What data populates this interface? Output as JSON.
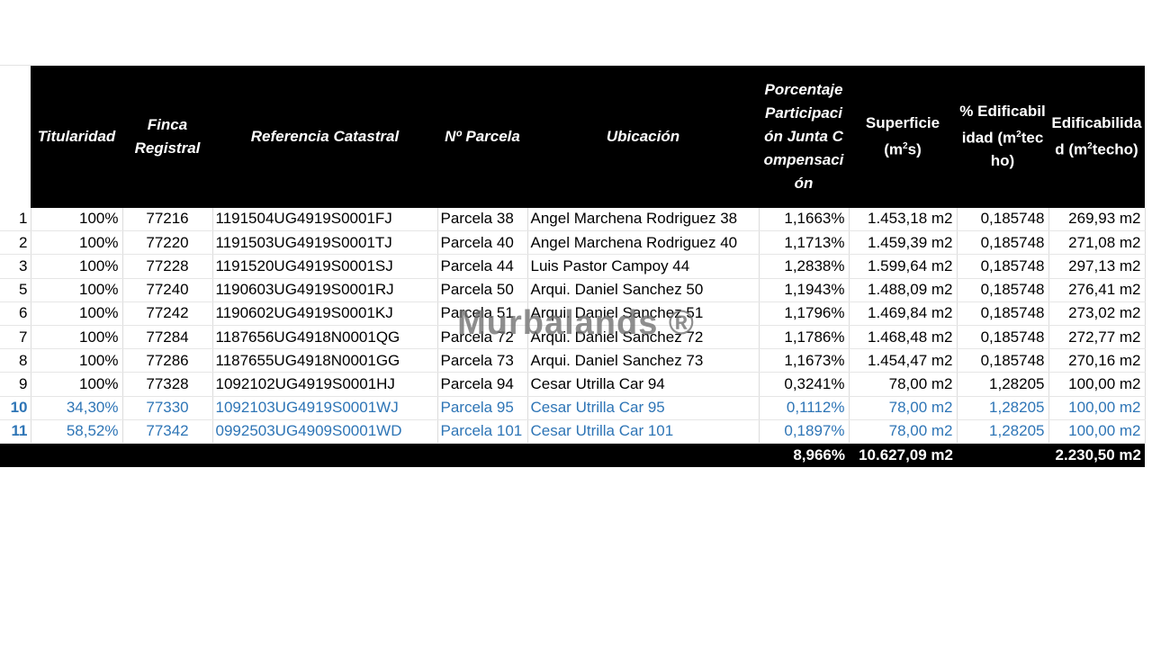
{
  "table": {
    "headers": {
      "titularidad": "Titularidad",
      "finca": "Finca Registral",
      "referencia": "Referencia Catastral",
      "parcela": "Nº Parcela",
      "ubicacion": "Ubicación",
      "porcentaje": "Porcentaje Participación Junta Compensación",
      "superficie_pre": "Superficie (m",
      "superficie_sup": "2",
      "superficie_post": "s)",
      "pct_edif_pre": "% Edificabilidad (m",
      "pct_edif_sup": "2",
      "pct_edif_post": "techo)",
      "edif_pre": "Edificabilidad (m",
      "edif_sup": "2",
      "edif_post": "techo)"
    },
    "rows": [
      {
        "n": "1",
        "titularidad": "100%",
        "finca": "77216",
        "referencia": "1191504UG4919S0001FJ",
        "parcela": "Parcela 38",
        "ubicacion": "Angel Marchena Rodriguez 38",
        "porcentaje": "1,1663%",
        "superficie": "1.453,18 m2",
        "pct_edif": "0,185748",
        "edif": "269,93 m2"
      },
      {
        "n": "2",
        "titularidad": "100%",
        "finca": "77220",
        "referencia": "1191503UG4919S0001TJ",
        "parcela": "Parcela 40",
        "ubicacion": "Angel Marchena Rodriguez 40",
        "porcentaje": "1,1713%",
        "superficie": "1.459,39 m2",
        "pct_edif": "0,185748",
        "edif": "271,08 m2"
      },
      {
        "n": "3",
        "titularidad": "100%",
        "finca": "77228",
        "referencia": "1191520UG4919S0001SJ",
        "parcela": "Parcela 44",
        "ubicacion": "Luis Pastor Campoy 44",
        "porcentaje": "1,2838%",
        "superficie": "1.599,64 m2",
        "pct_edif": "0,185748",
        "edif": "297,13 m2"
      },
      {
        "n": "5",
        "titularidad": "100%",
        "finca": "77240",
        "referencia": "1190603UG4919S0001RJ",
        "parcela": "Parcela 50",
        "ubicacion": "Arqui. Daniel Sanchez 50",
        "porcentaje": "1,1943%",
        "superficie": "1.488,09 m2",
        "pct_edif": "0,185748",
        "edif": "276,41 m2"
      },
      {
        "n": "6",
        "titularidad": "100%",
        "finca": "77242",
        "referencia": "1190602UG4919S0001KJ",
        "parcela": "Parcela 51",
        "ubicacion": "Arqui. Daniel Sanchez 51",
        "porcentaje": "1,1796%",
        "superficie": "1.469,84 m2",
        "pct_edif": "0,185748",
        "edif": "273,02 m2"
      },
      {
        "n": "7",
        "titularidad": "100%",
        "finca": "77284",
        "referencia": "1187656UG4918N0001QG",
        "parcela": "Parcela 72",
        "ubicacion": "Arqui. Daniel Sanchez 72",
        "porcentaje": "1,1786%",
        "superficie": "1.468,48 m2",
        "pct_edif": "0,185748",
        "edif": "272,77 m2"
      },
      {
        "n": "8",
        "titularidad": "100%",
        "finca": "77286",
        "referencia": "1187655UG4918N0001GG",
        "parcela": "Parcela 73",
        "ubicacion": "Arqui. Daniel Sanchez 73",
        "porcentaje": "1,1673%",
        "superficie": "1.454,47 m2",
        "pct_edif": "0,185748",
        "edif": "270,16 m2"
      },
      {
        "n": "9",
        "titularidad": "100%",
        "finca": "77328",
        "referencia": "1092102UG4919S0001HJ",
        "parcela": "Parcela 94",
        "ubicacion": "Cesar Utrilla Car 94",
        "porcentaje": "0,3241%",
        "superficie": "78,00 m2",
        "pct_edif": "1,28205",
        "edif": "100,00 m2"
      },
      {
        "n": "10",
        "titularidad": "34,30%",
        "finca": "77330",
        "referencia": "1092103UG4919S0001WJ",
        "parcela": "Parcela 95",
        "ubicacion": "Cesar Utrilla Car 95",
        "porcentaje": "0,1112%",
        "superficie": "78,00 m2",
        "pct_edif": "1,28205",
        "edif": "100,00 m2"
      },
      {
        "n": "11",
        "titularidad": "58,52%",
        "finca": "77342",
        "referencia": "0992503UG4909S0001WD",
        "parcela": "Parcela 101",
        "ubicacion": "Cesar Utrilla Car 101",
        "porcentaje": "0,1897%",
        "superficie": "78,00 m2",
        "pct_edif": "1,28205",
        "edif": "100,00 m2"
      }
    ],
    "totals": {
      "porcentaje": "8,966%",
      "superficie": "10.627,09 m2",
      "edif": "2.230,50 m2"
    }
  },
  "highlight_color": "#2e75b6",
  "watermark": "Murbalands ®"
}
